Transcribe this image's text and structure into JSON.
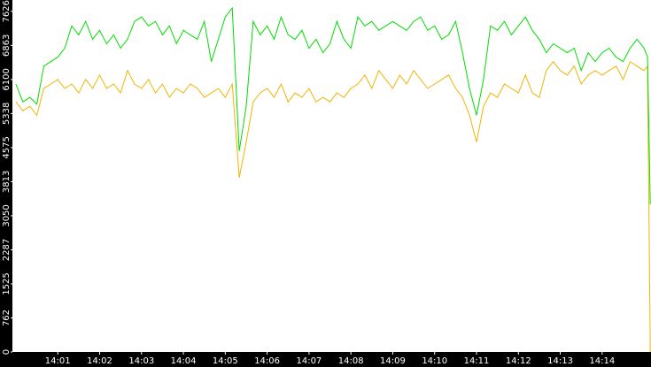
{
  "chart_data": {
    "type": "line",
    "x": [
      0,
      10,
      20,
      30,
      40,
      50,
      60,
      70,
      80,
      90,
      100,
      110,
      120,
      130,
      140,
      150,
      160,
      170,
      180,
      190,
      200,
      210,
      220,
      230,
      240,
      250,
      260,
      270,
      280,
      290,
      300,
      310,
      320,
      330,
      340,
      350,
      360,
      370,
      380,
      390,
      400,
      410,
      420,
      430,
      440,
      450,
      460,
      470,
      480,
      490,
      500,
      510,
      520,
      530,
      540,
      550,
      560,
      570,
      580,
      590,
      600,
      610,
      620,
      630,
      640,
      650,
      660,
      670,
      680,
      690,
      700,
      710,
      720,
      730,
      740,
      750,
      760,
      770,
      780,
      790,
      800,
      810,
      820,
      830,
      840,
      850,
      860,
      870,
      880,
      890,
      900,
      905,
      909
    ],
    "series": [
      {
        "color": "#00dd00",
        "values": [
          6000,
          5600,
          5700,
          5550,
          6400,
          6500,
          6600,
          6800,
          7300,
          7100,
          7400,
          7000,
          7200,
          6900,
          7100,
          6800,
          7000,
          7400,
          7500,
          7300,
          7400,
          7100,
          7300,
          6900,
          7200,
          7100,
          7000,
          7400,
          6500,
          7000,
          7500,
          7700,
          4500,
          5500,
          7400,
          7100,
          7300,
          7000,
          7500,
          7100,
          7000,
          7200,
          6800,
          7000,
          6700,
          6900,
          7400,
          7000,
          6800,
          7500,
          7300,
          7400,
          7200,
          7300,
          7400,
          7300,
          7200,
          7400,
          7500,
          7200,
          7300,
          7000,
          7100,
          7400,
          6700,
          5900,
          5300,
          6100,
          7300,
          7200,
          7400,
          7100,
          7300,
          7500,
          7200,
          7000,
          6700,
          6900,
          6800,
          6700,
          6800,
          6300,
          6700,
          6500,
          6700,
          6800,
          6600,
          6500,
          6800,
          7000,
          6800,
          6600,
          3300
        ]
      },
      {
        "color": "#f0b400",
        "values": [
          5600,
          5400,
          5500,
          5300,
          5900,
          6000,
          6100,
          5900,
          6000,
          5800,
          6100,
          5900,
          6200,
          5900,
          6000,
          5800,
          6300,
          6000,
          5900,
          6100,
          5800,
          6000,
          5700,
          5900,
          5800,
          6000,
          5900,
          5700,
          5800,
          5900,
          5700,
          6000,
          3900,
          4700,
          5600,
          5800,
          5900,
          5700,
          6000,
          5600,
          5800,
          5700,
          5900,
          5600,
          5700,
          5600,
          5800,
          5700,
          5900,
          6000,
          6200,
          5900,
          6300,
          6100,
          5900,
          6200,
          6000,
          6300,
          6100,
          5900,
          6000,
          6100,
          6200,
          5900,
          5700,
          5300,
          4700,
          5500,
          5800,
          5700,
          6000,
          5900,
          5800,
          6200,
          5800,
          5700,
          6300,
          6500,
          6300,
          6200,
          6400,
          6000,
          6200,
          6300,
          6200,
          6300,
          6400,
          6100,
          6500,
          6400,
          6300,
          6400,
          0
        ]
      }
    ],
    "xlim": [
      -5,
      910
    ],
    "xticks": [
      {
        "value": 60,
        "label": "14:01"
      },
      {
        "value": 120,
        "label": "14:02"
      },
      {
        "value": 180,
        "label": "14:03"
      },
      {
        "value": 240,
        "label": "14:04"
      },
      {
        "value": 300,
        "label": "14:05"
      },
      {
        "value": 360,
        "label": "14:06"
      },
      {
        "value": 420,
        "label": "14:07"
      },
      {
        "value": 480,
        "label": "14:08"
      },
      {
        "value": 540,
        "label": "14:09"
      },
      {
        "value": 600,
        "label": "14:10"
      },
      {
        "value": 660,
        "label": "14:11"
      },
      {
        "value": 720,
        "label": "14:12"
      },
      {
        "value": 780,
        "label": "14:13"
      },
      {
        "value": 840,
        "label": "14:14"
      }
    ],
    "ylim": [
      0,
      7880
    ],
    "yticks": [
      0,
      762,
      1525,
      2287,
      3050,
      3813,
      4575,
      5338,
      6100,
      6863,
      7626
    ]
  }
}
